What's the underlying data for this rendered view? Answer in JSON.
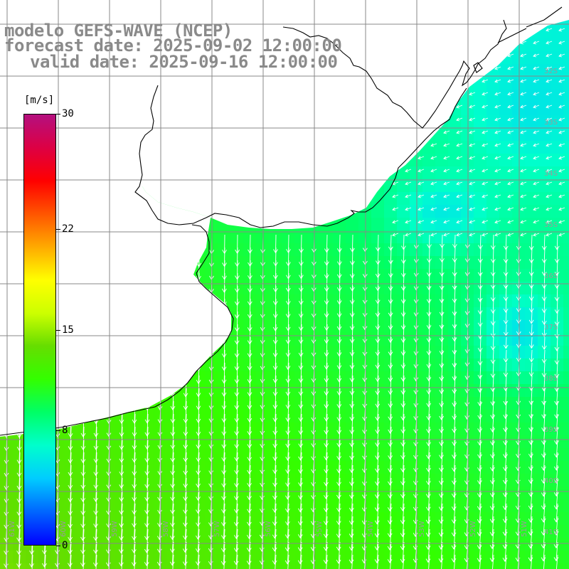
{
  "title": {
    "line1": "modelo GEFS-WAVE (NCEP)",
    "line2": "forecast date: 2025-09-02 12:00:00",
    "line3": "valid date: 2025-09-16 12:00:00"
  },
  "colorbar": {
    "unit": "[m/s]",
    "ticks": [
      "30",
      "22",
      "15",
      "8",
      "0"
    ],
    "tick_values": [
      30,
      22,
      15,
      8,
      0
    ],
    "range": [
      0,
      30
    ],
    "colors": [
      "#0000ff",
      "#0066ff",
      "#00ccff",
      "#00ffcc",
      "#00ff66",
      "#33ff00",
      "#66dd00",
      "#ccff00",
      "#ffff00",
      "#ffaa00",
      "#ff5500",
      "#ff0000",
      "#dd0044",
      "#b4107f"
    ]
  },
  "map": {
    "lat_labels": [
      "32S",
      "33S",
      "34S",
      "35S",
      "36S",
      "37S",
      "38S",
      "39S",
      "40S",
      "41S"
    ],
    "lon_labels": [
      "61W",
      "60W",
      "59W",
      "58W",
      "57W",
      "56W",
      "55W",
      "54W",
      "53W",
      "52W",
      "51W"
    ],
    "land_color": "#ffffff",
    "arrow_color": "#ffffff",
    "arrow_direction": "south-southwest",
    "grid_color": "#888888",
    "coast_color": "#000000"
  }
}
